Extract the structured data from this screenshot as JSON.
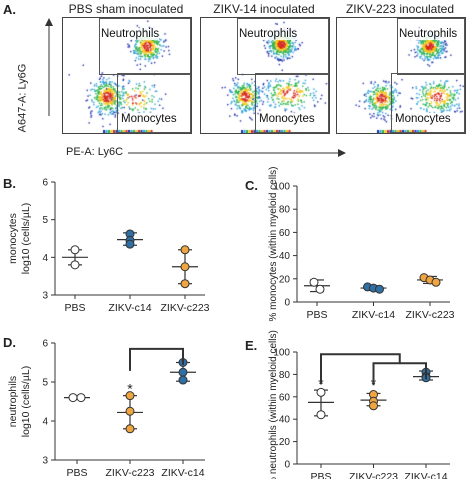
{
  "panel_a": {
    "letter": "A.",
    "y_axis_label": "A647-A: Ly6G",
    "x_axis_label": "PE-A: Ly6C",
    "plots": [
      {
        "title": "PBS sham inoculated",
        "gate_top": "Neutrophils",
        "gate_bottom": "Monocytes"
      },
      {
        "title": "ZIKV-14 inoculated",
        "gate_top": "Neutrophils",
        "gate_bottom": "Monocytes"
      },
      {
        "title": "ZIKV-223 inoculated",
        "gate_top": "Neutrophils",
        "gate_bottom": "Monocytes"
      }
    ]
  },
  "colors": {
    "orange": "#f0a640",
    "blue": "#2f6fa3",
    "grey": "#ffffff",
    "line": "#333333"
  },
  "chart_data": [
    {
      "panel": "B.",
      "type": "scatter",
      "ylabel_top": "monocytes",
      "ylabel": "log10 (cells/µL)",
      "ylim": [
        3,
        6
      ],
      "yticks": [
        "3",
        "4",
        "5",
        "6"
      ],
      "categories": [
        "PBS",
        "ZIKV-c14",
        "ZIKV-c223"
      ],
      "points": [
        {
          "cat": 0,
          "color": "grey",
          "values": [
            4.2,
            3.8
          ]
        },
        {
          "cat": 1,
          "color": "blue",
          "values": [
            4.62,
            4.45,
            4.35
          ]
        },
        {
          "cat": 2,
          "color": "orange",
          "values": [
            4.2,
            3.75,
            3.3
          ]
        }
      ],
      "means": [
        4.0,
        4.47,
        3.75
      ],
      "err": [
        [
          3.8,
          4.2
        ],
        [
          4.32,
          4.65
        ],
        [
          3.3,
          4.2
        ]
      ]
    },
    {
      "panel": "C.",
      "type": "scatter",
      "ylabel": "% monocytes (within myeloid cells)",
      "ylim": [
        0,
        100
      ],
      "yticks": [
        "0",
        "20",
        "40",
        "60",
        "80",
        "100"
      ],
      "categories": [
        "PBS",
        "ZIKV-c14",
        "ZIKV-c223"
      ],
      "points": [
        {
          "cat": 0,
          "color": "grey",
          "values": [
            17,
            11
          ]
        },
        {
          "cat": 1,
          "color": "blue",
          "values": [
            13,
            12,
            11
          ]
        },
        {
          "cat": 2,
          "color": "orange",
          "values": [
            21,
            19,
            17
          ]
        }
      ],
      "means": [
        14,
        12,
        19
      ],
      "err": [
        [
          9,
          19
        ],
        [
          10,
          14
        ],
        [
          16,
          22
        ]
      ]
    },
    {
      "panel": "D.",
      "type": "scatter",
      "ylabel_top": "neutrophils",
      "ylabel": "log10 (cells/µL)",
      "ylim": [
        3,
        6
      ],
      "yticks": [
        "3",
        "4",
        "5",
        "6"
      ],
      "categories": [
        "PBS",
        "ZIKV-c223",
        "ZIKV-c14"
      ],
      "points": [
        {
          "cat": 0,
          "color": "grey",
          "values": [
            4.6,
            4.6
          ]
        },
        {
          "cat": 1,
          "color": "orange",
          "values": [
            4.65,
            4.25,
            3.8
          ]
        },
        {
          "cat": 2,
          "color": "blue",
          "values": [
            5.5,
            5.25,
            5.05
          ]
        }
      ],
      "means": [
        4.6,
        4.22,
        5.25
      ],
      "err": [
        null,
        [
          3.8,
          4.65
        ],
        [
          5.02,
          5.5
        ]
      ],
      "stars": [
        {
          "cat": 1,
          "y": 4.83,
          "text": "*"
        }
      ],
      "brackets": [
        {
          "from": 1,
          "to": 2,
          "y": 5.85
        }
      ]
    },
    {
      "panel": "E.",
      "type": "scatter",
      "ylabel": "% neutrophils (within myeloid cells)",
      "ylim": [
        0,
        100
      ],
      "yticks": [
        "0",
        "20",
        "40",
        "60",
        "80",
        "100"
      ],
      "categories": [
        "PBS",
        "ZIKV-c223",
        "ZIKV-c14"
      ],
      "points": [
        {
          "cat": 0,
          "color": "grey",
          "values": [
            64,
            44
          ]
        },
        {
          "cat": 1,
          "color": "orange",
          "values": [
            62,
            56,
            52
          ]
        },
        {
          "cat": 2,
          "color": "blue",
          "values": [
            82,
            78,
            77
          ]
        }
      ],
      "means": [
        55,
        57,
        78
      ],
      "err": [
        [
          43,
          66
        ],
        [
          52,
          63
        ],
        [
          75,
          83
        ]
      ],
      "stars": [
        {
          "cat": 0,
          "y": 72,
          "text": "*"
        },
        {
          "cat": 1,
          "y": 72,
          "text": "*"
        }
      ],
      "brackets": [
        {
          "from": 1,
          "to": 2,
          "y": 90
        },
        {
          "from": 0,
          "to": 2,
          "y": 98,
          "nested": true
        }
      ]
    }
  ]
}
